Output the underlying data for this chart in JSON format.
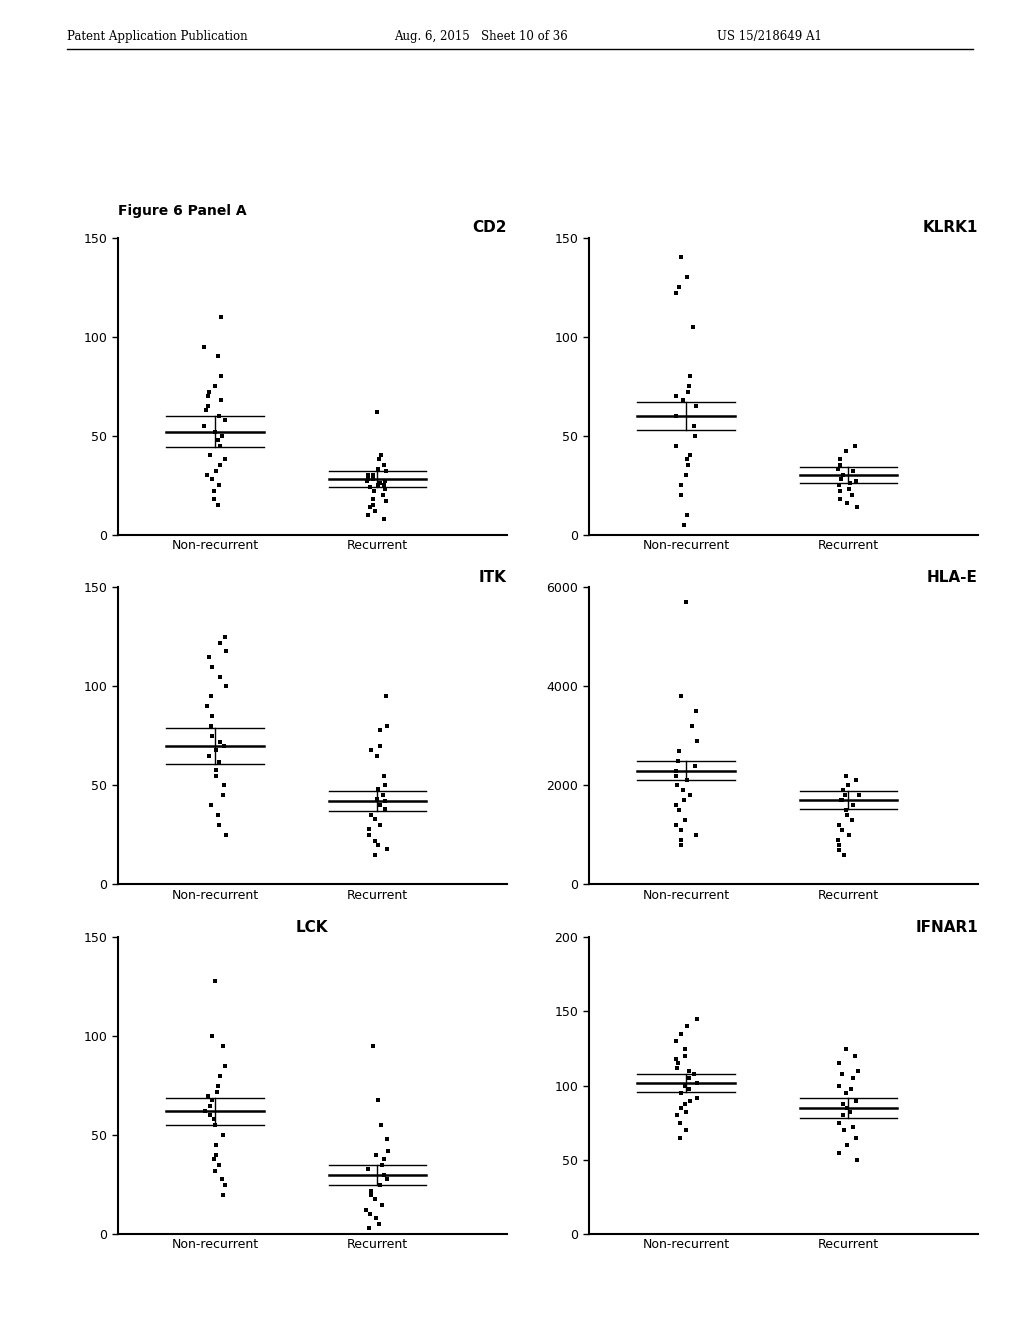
{
  "header_left": "Patent Application Publication",
  "header_center": "Aug. 6, 2015   Sheet 10 of 36",
  "header_right": "US 15/218649 A1",
  "figure_label": "Figure 6 Panel A",
  "plots": [
    {
      "title": "CD2",
      "title_loc": "right",
      "ylim": [
        0,
        150
      ],
      "yticks": [
        0,
        50,
        100,
        150
      ],
      "groups": [
        "Non-recurrent",
        "Recurrent"
      ],
      "nonrecurrent_mean": 52,
      "nonrecurrent_sem_hi": 8,
      "nonrecurrent_sem_lo": 8,
      "nonrecurrent_pts": [
        110,
        95,
        90,
        80,
        75,
        72,
        70,
        68,
        65,
        63,
        60,
        58,
        55,
        52,
        50,
        48,
        45,
        40,
        38,
        35,
        32,
        30,
        28,
        25,
        22,
        18,
        15
      ],
      "recurrent_mean": 28,
      "recurrent_sem_hi": 4,
      "recurrent_sem_lo": 4,
      "recurrent_pts": [
        62,
        40,
        38,
        35,
        33,
        32,
        30,
        30,
        28,
        28,
        27,
        27,
        26,
        25,
        25,
        24,
        23,
        22,
        20,
        18,
        17,
        15,
        14,
        12,
        10,
        8
      ]
    },
    {
      "title": "KLRK1",
      "title_loc": "right",
      "ylim": [
        0,
        150
      ],
      "yticks": [
        0,
        50,
        100,
        150
      ],
      "groups": [
        "Non-recurrent",
        "Recurrent"
      ],
      "nonrecurrent_mean": 60,
      "nonrecurrent_sem_hi": 7,
      "nonrecurrent_sem_lo": 7,
      "nonrecurrent_pts": [
        140,
        130,
        125,
        122,
        105,
        80,
        75,
        72,
        70,
        68,
        65,
        60,
        55,
        50,
        45,
        40,
        38,
        35,
        30,
        25,
        20,
        10,
        5
      ],
      "recurrent_mean": 30,
      "recurrent_sem_hi": 4,
      "recurrent_sem_lo": 4,
      "recurrent_pts": [
        45,
        42,
        38,
        35,
        33,
        32,
        30,
        28,
        27,
        26,
        25,
        23,
        22,
        20,
        18,
        16,
        14
      ]
    },
    {
      "title": "ITK",
      "title_loc": "right",
      "ylim": [
        0,
        150
      ],
      "yticks": [
        0,
        50,
        100,
        150
      ],
      "groups": [
        "Non-recurrent",
        "Recurrent"
      ],
      "nonrecurrent_mean": 70,
      "nonrecurrent_sem_hi": 9,
      "nonrecurrent_sem_lo": 9,
      "nonrecurrent_pts": [
        125,
        122,
        118,
        115,
        110,
        105,
        100,
        95,
        90,
        85,
        80,
        75,
        72,
        70,
        68,
        65,
        62,
        58,
        55,
        50,
        45,
        40,
        35,
        30,
        25
      ],
      "recurrent_mean": 42,
      "recurrent_sem_hi": 5,
      "recurrent_sem_lo": 5,
      "recurrent_pts": [
        95,
        80,
        78,
        70,
        68,
        65,
        55,
        50,
        48,
        45,
        43,
        42,
        40,
        38,
        35,
        33,
        30,
        28,
        25,
        22,
        20,
        18,
        15
      ]
    },
    {
      "title": "HLA-E",
      "title_loc": "right",
      "has_outlier_above": true,
      "outlier_above_val": 5700,
      "ylim": [
        0,
        6000
      ],
      "yticks": [
        0,
        2000,
        4000,
        6000
      ],
      "groups": [
        "Non-recurrent",
        "Recurrent"
      ],
      "nonrecurrent_mean": 2300,
      "nonrecurrent_sem_hi": 200,
      "nonrecurrent_sem_lo": 200,
      "nonrecurrent_pts": [
        3800,
        3500,
        3200,
        2900,
        2700,
        2500,
        2400,
        2300,
        2200,
        2100,
        2000,
        1900,
        1800,
        1700,
        1600,
        1500,
        1300,
        1200,
        1100,
        1000,
        900,
        800
      ],
      "recurrent_mean": 1700,
      "recurrent_sem_hi": 180,
      "recurrent_sem_lo": 180,
      "recurrent_pts": [
        2200,
        2100,
        2000,
        1900,
        1800,
        1800,
        1700,
        1700,
        1600,
        1500,
        1400,
        1300,
        1200,
        1100,
        1000,
        900,
        800,
        700,
        600
      ]
    },
    {
      "title": "LCK",
      "title_loc": "center",
      "has_outlier_above": true,
      "outlier_above_val": 128,
      "ylim": [
        0,
        150
      ],
      "yticks": [
        0,
        50,
        100,
        150
      ],
      "groups": [
        "Non-recurrent",
        "Recurrent"
      ],
      "nonrecurrent_mean": 62,
      "nonrecurrent_sem_hi": 7,
      "nonrecurrent_sem_lo": 7,
      "nonrecurrent_pts": [
        100,
        95,
        85,
        80,
        75,
        72,
        70,
        68,
        65,
        62,
        60,
        58,
        55,
        50,
        45,
        40,
        38,
        35,
        32,
        28,
        25,
        20
      ],
      "recurrent_mean": 30,
      "recurrent_sem_hi": 5,
      "recurrent_sem_lo": 5,
      "recurrent_pts": [
        95,
        68,
        55,
        48,
        42,
        40,
        38,
        35,
        33,
        30,
        28,
        25,
        22,
        20,
        18,
        15,
        12,
        10,
        8,
        5,
        3
      ]
    },
    {
      "title": "IFNAR1",
      "title_loc": "right",
      "ylim": [
        0,
        200
      ],
      "yticks": [
        0,
        50,
        100,
        150,
        200
      ],
      "groups": [
        "Non-recurrent",
        "Recurrent"
      ],
      "nonrecurrent_mean": 102,
      "nonrecurrent_sem_hi": 6,
      "nonrecurrent_sem_lo": 6,
      "nonrecurrent_pts": [
        145,
        140,
        135,
        130,
        125,
        120,
        118,
        115,
        112,
        110,
        108,
        105,
        102,
        100,
        98,
        95,
        92,
        90,
        88,
        85,
        82,
        80,
        75,
        70,
        65
      ],
      "recurrent_mean": 85,
      "recurrent_sem_hi": 7,
      "recurrent_sem_lo": 7,
      "recurrent_pts": [
        125,
        120,
        115,
        110,
        108,
        105,
        100,
        98,
        95,
        90,
        88,
        85,
        82,
        80,
        75,
        72,
        70,
        65,
        60,
        55,
        50
      ]
    }
  ]
}
